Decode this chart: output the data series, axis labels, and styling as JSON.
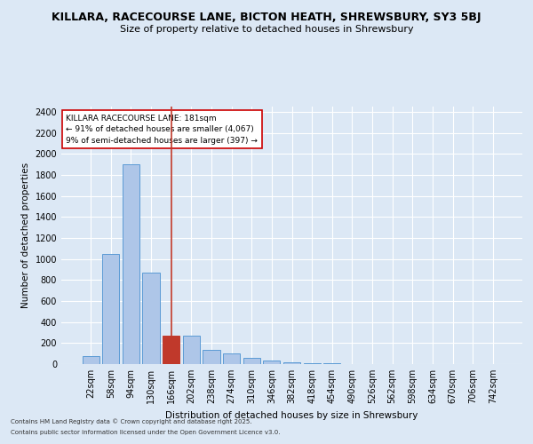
{
  "title1": "KILLARA, RACECOURSE LANE, BICTON HEATH, SHREWSBURY, SY3 5BJ",
  "title2": "Size of property relative to detached houses in Shrewsbury",
  "xlabel": "Distribution of detached houses by size in Shrewsbury",
  "ylabel": "Number of detached properties",
  "categories": [
    "22sqm",
    "58sqm",
    "94sqm",
    "130sqm",
    "166sqm",
    "202sqm",
    "238sqm",
    "274sqm",
    "310sqm",
    "346sqm",
    "382sqm",
    "418sqm",
    "454sqm",
    "490sqm",
    "526sqm",
    "562sqm",
    "598sqm",
    "634sqm",
    "670sqm",
    "706sqm",
    "742sqm"
  ],
  "values": [
    75,
    1050,
    1900,
    870,
    270,
    270,
    135,
    100,
    55,
    35,
    20,
    10,
    5,
    4,
    2,
    1,
    1,
    0,
    0,
    0,
    0
  ],
  "bar_colors": [
    "#aec6e8",
    "#aec6e8",
    "#aec6e8",
    "#aec6e8",
    "#c0392b",
    "#aec6e8",
    "#aec6e8",
    "#aec6e8",
    "#aec6e8",
    "#aec6e8",
    "#aec6e8",
    "#aec6e8",
    "#aec6e8",
    "#aec6e8",
    "#aec6e8",
    "#aec6e8",
    "#aec6e8",
    "#aec6e8",
    "#aec6e8",
    "#aec6e8",
    "#aec6e8"
  ],
  "bar_edge_colors": [
    "#5b9bd5",
    "#5b9bd5",
    "#5b9bd5",
    "#5b9bd5",
    "#c0392b",
    "#5b9bd5",
    "#5b9bd5",
    "#5b9bd5",
    "#5b9bd5",
    "#5b9bd5",
    "#5b9bd5",
    "#5b9bd5",
    "#5b9bd5",
    "#5b9bd5",
    "#5b9bd5",
    "#5b9bd5",
    "#5b9bd5",
    "#5b9bd5",
    "#5b9bd5",
    "#5b9bd5",
    "#5b9bd5"
  ],
  "vline_x_index": 4,
  "vline_color": "#c0392b",
  "ylim": [
    0,
    2450
  ],
  "yticks": [
    0,
    200,
    400,
    600,
    800,
    1000,
    1200,
    1400,
    1600,
    1800,
    2000,
    2200,
    2400
  ],
  "annotation_title": "KILLARA RACECOURSE LANE: 181sqm",
  "annotation_line1": "← 91% of detached houses are smaller (4,067)",
  "annotation_line2": "9% of semi-detached houses are larger (397) →",
  "bg_color": "#dce8f5",
  "grid_color": "#ffffff",
  "footer1": "Contains HM Land Registry data © Crown copyright and database right 2025.",
  "footer2": "Contains public sector information licensed under the Open Government Licence v3.0.",
  "title_fontsize": 9,
  "subtitle_fontsize": 8,
  "axis_label_fontsize": 7.5,
  "tick_fontsize": 7,
  "bar_width": 0.85,
  "fig_bg_color": "#dce8f5"
}
